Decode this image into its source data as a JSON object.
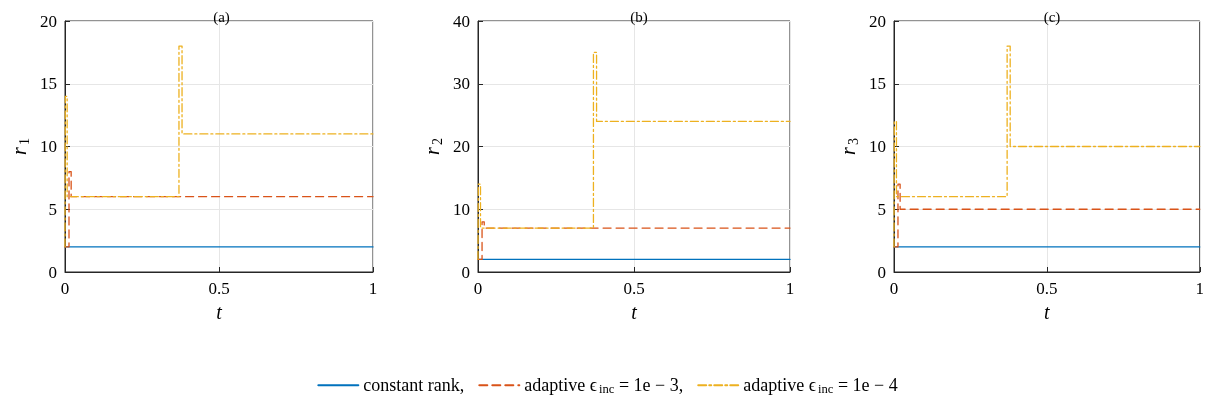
{
  "chart_data": [
    {
      "type": "step",
      "title": "(a)",
      "xlabel": "t",
      "ylabel": "r$_{1}$",
      "xlim": [
        0,
        1
      ],
      "xticks": [
        0,
        0.5,
        1
      ],
      "ylim": [
        0,
        20
      ],
      "yticks": [
        0,
        5,
        10,
        15,
        20
      ],
      "grid": true,
      "legend": "bottom",
      "series": [
        {
          "name": "constant rank,",
          "color": "#0072bd",
          "line_style": "solid",
          "x": [
            0,
            1
          ],
          "values": [
            2,
            2
          ]
        },
        {
          "name": "adaptive ϵ$_{inc}$ = 1e − 3,",
          "color": "#d95319",
          "line_style": "dashed",
          "x": [
            0,
            0.013,
            0.02,
            1
          ],
          "values": [
            2,
            8,
            6,
            6
          ]
        },
        {
          "name": "adaptive ϵ$_{inc}$ = 1e − 4",
          "color": "#edb120",
          "line_style": "dashdot",
          "x": [
            0,
            0.001,
            0.007,
            0.37,
            0.38,
            1
          ],
          "values": [
            2,
            14,
            6,
            18,
            11,
            11
          ]
        }
      ]
    },
    {
      "type": "step",
      "title": "(b)",
      "xlabel": "t",
      "ylabel": "r$_{2}$",
      "xlim": [
        0,
        1
      ],
      "xticks": [
        0,
        0.5,
        1
      ],
      "ylim": [
        0,
        40
      ],
      "yticks": [
        0,
        10,
        20,
        30,
        40
      ],
      "grid": true,
      "series": [
        {
          "color": "#0072bd",
          "line_style": "solid",
          "x": [
            0,
            1
          ],
          "values": [
            2,
            2
          ]
        },
        {
          "color": "#d95319",
          "line_style": "dashed",
          "x": [
            0,
            0.013,
            0.02,
            1
          ],
          "values": [
            2,
            8,
            7,
            7
          ]
        },
        {
          "color": "#edb120",
          "line_style": "dashdot",
          "x": [
            0,
            0.001,
            0.008,
            0.37,
            0.38,
            1
          ],
          "values": [
            2,
            14,
            7,
            35,
            24,
            24
          ]
        }
      ]
    },
    {
      "type": "step",
      "title": "(c)",
      "xlabel": "t",
      "ylabel": "r$_{3}$",
      "xlim": [
        0,
        1
      ],
      "xticks": [
        0,
        0.5,
        1
      ],
      "ylim": [
        0,
        20
      ],
      "yticks": [
        0,
        5,
        10,
        15,
        20
      ],
      "grid": true,
      "series": [
        {
          "color": "#0072bd",
          "line_style": "solid",
          "x": [
            0,
            1
          ],
          "values": [
            2,
            2
          ]
        },
        {
          "color": "#d95319",
          "line_style": "dashed",
          "x": [
            0,
            0.013,
            0.02,
            1
          ],
          "values": [
            2,
            7,
            5,
            5
          ]
        },
        {
          "color": "#edb120",
          "line_style": "dashdot",
          "x": [
            0,
            0.001,
            0.008,
            0.37,
            0.38,
            1
          ],
          "values": [
            2,
            12,
            6,
            18,
            10,
            10
          ]
        }
      ]
    }
  ]
}
